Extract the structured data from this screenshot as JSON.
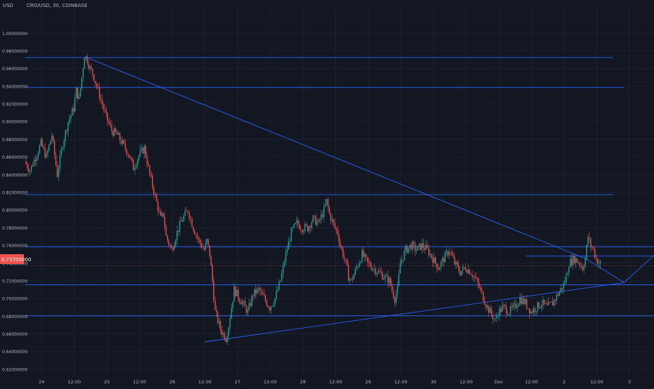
{
  "header": {
    "symbol": "CRO/USD, 30, COINBASE",
    "currency": "USD"
  },
  "current_price_label": "0.73700000",
  "colors": {
    "background": "#131722",
    "grid": "#1c2130",
    "axis_text": "#b2b5be",
    "up_candle": "#26a69a",
    "down_candle": "#ef5350",
    "drawing_lines": "#2962ff",
    "price_tag": "#ef5350"
  },
  "chart_data": {
    "type": "candlestick",
    "title": "CRO/USD, 30, COINBASE",
    "ylabel": "USD",
    "ylim": [
      0.612,
      1.028
    ],
    "grid": true,
    "y_ticks": [
      "1.00000000",
      "0.98000000",
      "0.96000000",
      "0.94000000",
      "0.92000000",
      "0.90000000",
      "0.88000000",
      "0.86000000",
      "0.84000000",
      "0.82000000",
      "0.80000000",
      "0.78000000",
      "0.76000000",
      "0.74000000",
      "0.72000000",
      "0.70000000",
      "0.68000000",
      "0.66000000",
      "0.64000000",
      "0.62000000"
    ],
    "x_ticks": [
      "24",
      "12:00",
      "25",
      "12:00",
      "26",
      "12:00",
      "27",
      "12:00",
      "28",
      "12:00",
      "29",
      "12:00",
      "30",
      "12:00",
      "Dec",
      "12:00",
      "2",
      "12:00",
      "3"
    ],
    "x_tick_times": [
      0,
      12,
      24,
      36,
      48,
      60,
      72,
      84,
      96,
      108,
      120,
      132,
      144,
      156,
      168,
      180,
      192,
      204,
      216
    ],
    "xlim_hours": [
      -6,
      225
    ],
    "price_series": [
      [
        -6,
        0.855
      ],
      [
        -4,
        0.845
      ],
      [
        -2,
        0.86
      ],
      [
        0,
        0.875
      ],
      [
        2,
        0.86
      ],
      [
        4,
        0.885
      ],
      [
        6,
        0.84
      ],
      [
        8,
        0.875
      ],
      [
        10,
        0.9
      ],
      [
        12,
        0.915
      ],
      [
        13,
        0.935
      ],
      [
        14,
        0.925
      ],
      [
        15,
        0.95
      ],
      [
        16,
        0.975
      ],
      [
        17,
        0.97
      ],
      [
        18,
        0.96
      ],
      [
        19,
        0.955
      ],
      [
        20,
        0.945
      ],
      [
        21,
        0.935
      ],
      [
        22,
        0.925
      ],
      [
        24,
        0.905
      ],
      [
        26,
        0.89
      ],
      [
        28,
        0.885
      ],
      [
        30,
        0.875
      ],
      [
        32,
        0.865
      ],
      [
        34,
        0.848
      ],
      [
        36,
        0.862
      ],
      [
        38,
        0.87
      ],
      [
        40,
        0.84
      ],
      [
        42,
        0.815
      ],
      [
        44,
        0.79
      ],
      [
        45,
        0.795
      ],
      [
        46,
        0.77
      ],
      [
        48,
        0.755
      ],
      [
        50,
        0.775
      ],
      [
        52,
        0.79
      ],
      [
        54,
        0.8
      ],
      [
        56,
        0.78
      ],
      [
        58,
        0.765
      ],
      [
        60,
        0.755
      ],
      [
        61,
        0.765
      ],
      [
        62,
        0.75
      ],
      [
        63,
        0.72
      ],
      [
        64,
        0.685
      ],
      [
        65,
        0.675
      ],
      [
        66,
        0.665
      ],
      [
        67,
        0.66
      ],
      [
        68,
        0.655
      ],
      [
        69,
        0.67
      ],
      [
        70,
        0.69
      ],
      [
        71,
        0.71
      ],
      [
        72,
        0.705
      ],
      [
        74,
        0.695
      ],
      [
        76,
        0.685
      ],
      [
        78,
        0.705
      ],
      [
        80,
        0.71
      ],
      [
        82,
        0.7
      ],
      [
        84,
        0.69
      ],
      [
        86,
        0.7
      ],
      [
        88,
        0.72
      ],
      [
        90,
        0.75
      ],
      [
        92,
        0.775
      ],
      [
        94,
        0.785
      ],
      [
        96,
        0.78
      ],
      [
        98,
        0.78
      ],
      [
        100,
        0.79
      ],
      [
        102,
        0.785
      ],
      [
        104,
        0.8
      ],
      [
        105,
        0.81
      ],
      [
        106,
        0.795
      ],
      [
        108,
        0.78
      ],
      [
        109,
        0.775
      ],
      [
        110,
        0.76
      ],
      [
        112,
        0.74
      ],
      [
        113,
        0.725
      ],
      [
        114,
        0.72
      ],
      [
        116,
        0.735
      ],
      [
        118,
        0.75
      ],
      [
        120,
        0.74
      ],
      [
        122,
        0.735
      ],
      [
        124,
        0.73
      ],
      [
        126,
        0.725
      ],
      [
        128,
        0.72
      ],
      [
        130,
        0.7
      ],
      [
        131,
        0.71
      ],
      [
        132,
        0.74
      ],
      [
        134,
        0.755
      ],
      [
        136,
        0.76
      ],
      [
        138,
        0.755
      ],
      [
        140,
        0.76
      ],
      [
        142,
        0.755
      ],
      [
        144,
        0.745
      ],
      [
        146,
        0.735
      ],
      [
        148,
        0.745
      ],
      [
        150,
        0.755
      ],
      [
        152,
        0.74
      ],
      [
        154,
        0.73
      ],
      [
        156,
        0.735
      ],
      [
        158,
        0.73
      ],
      [
        160,
        0.72
      ],
      [
        162,
        0.705
      ],
      [
        164,
        0.69
      ],
      [
        166,
        0.68
      ],
      [
        167,
        0.675
      ],
      [
        168,
        0.685
      ],
      [
        170,
        0.69
      ],
      [
        172,
        0.685
      ],
      [
        174,
        0.69
      ],
      [
        176,
        0.7
      ],
      [
        178,
        0.695
      ],
      [
        180,
        0.685
      ],
      [
        182,
        0.69
      ],
      [
        184,
        0.695
      ],
      [
        186,
        0.69
      ],
      [
        188,
        0.695
      ],
      [
        190,
        0.705
      ],
      [
        192,
        0.715
      ],
      [
        193,
        0.725
      ],
      [
        194,
        0.74
      ],
      [
        196,
        0.745
      ],
      [
        198,
        0.74
      ],
      [
        199,
        0.735
      ],
      [
        200,
        0.745
      ],
      [
        201,
        0.77
      ],
      [
        202,
        0.76
      ],
      [
        203,
        0.755
      ],
      [
        204,
        0.745
      ],
      [
        205,
        0.74
      ]
    ],
    "horizontal_levels": [
      {
        "price": 0.9725,
        "from_hour": -6,
        "to_hour": 210
      },
      {
        "price": 0.9385,
        "from_hour": -6,
        "to_hour": 214
      },
      {
        "price": 0.8175,
        "from_hour": -6,
        "to_hour": 210
      },
      {
        "price": 0.7585,
        "from_hour": -6,
        "to_hour": 225
      },
      {
        "price": 0.7155,
        "from_hour": -6,
        "to_hour": 225
      },
      {
        "price": 0.6805,
        "from_hour": -6,
        "to_hour": 225
      },
      {
        "price": 0.748,
        "from_hour": 178,
        "to_hour": 244
      }
    ],
    "trend_lines": [
      {
        "from": [
          17,
          0.972
        ],
        "to": [
          200,
          0.745
        ]
      },
      {
        "from": [
          200,
          0.745
        ],
        "to": [
          214,
          0.718
        ]
      },
      {
        "from": [
          60,
          0.651
        ],
        "to": [
          214,
          0.718
        ]
      },
      {
        "from": [
          214,
          0.718
        ],
        "to": [
          236,
          0.78
        ]
      }
    ]
  }
}
